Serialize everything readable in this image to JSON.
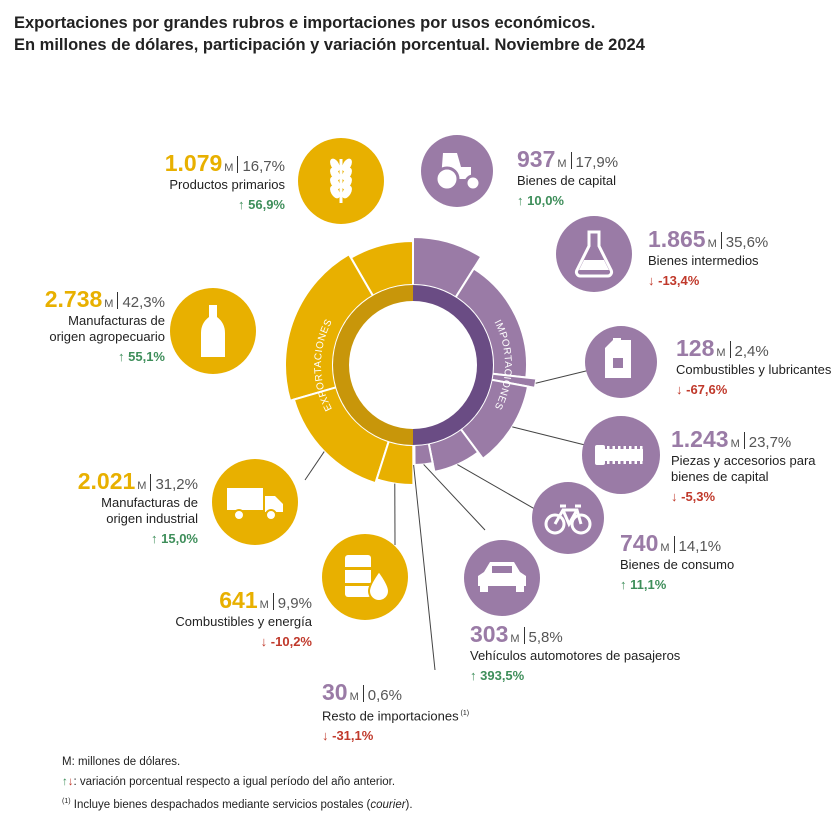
{
  "title": {
    "line1": "Exportaciones por grandes rubros e importaciones por usos económicos.",
    "line2": "En millones de dólares, participación y variación porcentual. Noviembre de 2024"
  },
  "ring_labels": {
    "exports": "EXPORTACIONES",
    "imports": "IMPORTACIONES"
  },
  "unit": "M",
  "colors": {
    "exports": "#E8B000",
    "exports_dark": "#C8960A",
    "imports": "#9A7BA6",
    "imports_dark": "#6A4C84",
    "up": "#3E8E5A",
    "down": "#C0392B"
  },
  "chart_data": {
    "type": "pie",
    "rings": [
      "exports",
      "imports"
    ],
    "series": [
      {
        "group": "exports",
        "slices": [
          {
            "name": "Productos primarios",
            "value_text": "1.079",
            "value": 1079,
            "share_text": "16,7%",
            "share": 16.7,
            "var_dir": "up",
            "var_text": "56,9%",
            "variation": 56.9,
            "icon": "wheat-icon"
          },
          {
            "name": "Manufacturas de origen agropecuario",
            "name_lines": [
              "Manufacturas de",
              "origen agropecuario"
            ],
            "value_text": "2.738",
            "value": 2738,
            "share_text": "42,3%",
            "share": 42.3,
            "var_dir": "up",
            "var_text": "55,1%",
            "variation": 55.1,
            "icon": "bottle-icon"
          },
          {
            "name": "Manufacturas de origen industrial",
            "name_lines": [
              "Manufacturas de",
              "origen industrial"
            ],
            "value_text": "2.021",
            "value": 2021,
            "share_text": "31,2%",
            "share": 31.2,
            "var_dir": "up",
            "var_text": "15,0%",
            "variation": 15.0,
            "icon": "truck-icon"
          },
          {
            "name": "Combustibles y energía",
            "value_text": "641",
            "value": 641,
            "share_text": "9,9%",
            "share": 9.9,
            "var_dir": "down",
            "var_text": "-10,2%",
            "variation": -10.2,
            "icon": "barrel-drop-icon"
          }
        ]
      },
      {
        "group": "imports",
        "slices": [
          {
            "name": "Bienes de capital",
            "value_text": "937",
            "value": 937,
            "share_text": "17,9%",
            "share": 17.9,
            "var_dir": "up",
            "var_text": "10,0%",
            "variation": 10.0,
            "icon": "tractor-icon"
          },
          {
            "name": "Bienes intermedios",
            "value_text": "1.865",
            "value": 1865,
            "share_text": "35,6%",
            "share": 35.6,
            "var_dir": "down",
            "var_text": "-13,4%",
            "variation": -13.4,
            "icon": "flask-icon"
          },
          {
            "name": "Combustibles y lubricantes",
            "value_text": "128",
            "value": 128,
            "share_text": "2,4%",
            "share": 2.4,
            "var_dir": "down",
            "var_text": "-67,6%",
            "variation": -67.6,
            "icon": "jerrycan-icon"
          },
          {
            "name": "Piezas y accesorios para bienes de capital",
            "name_lines": [
              "Piezas y accesorios para",
              "bienes de capital"
            ],
            "value_text": "1.243",
            "value": 1243,
            "share_text": "23,7%",
            "share": 23.7,
            "var_dir": "down",
            "var_text": "-5,3%",
            "variation": -5.3,
            "icon": "screw-icon"
          },
          {
            "name": "Bienes de consumo",
            "value_text": "740",
            "value": 740,
            "share_text": "14,1%",
            "share": 14.1,
            "var_dir": "up",
            "var_text": "11,1%",
            "variation": 11.1,
            "icon": "bicycle-icon"
          },
          {
            "name": "Vehículos automotores de pasajeros",
            "value_text": "303",
            "value": 303,
            "share_text": "5,8%",
            "share": 5.8,
            "var_dir": "up",
            "var_text": "393,5%",
            "variation": 393.5,
            "icon": "car-icon"
          },
          {
            "name": "Resto de importaciones",
            "value_text": "30",
            "value": 30,
            "share_text": "0,6%",
            "share": 0.6,
            "var_dir": "down",
            "var_text": "-31,1%",
            "variation": -31.1,
            "icon": "none",
            "footnote_mark": "(1)"
          }
        ]
      }
    ]
  },
  "notes": {
    "line1": "M: millones de dólares.",
    "line2": ": variación porcentual respecto a igual período del año anterior.",
    "line3_mark": "(1)",
    "line3_pre": "Incluye bienes despachados mediante servicios postales (",
    "line3_em": "courier",
    "line3_post": ")."
  }
}
